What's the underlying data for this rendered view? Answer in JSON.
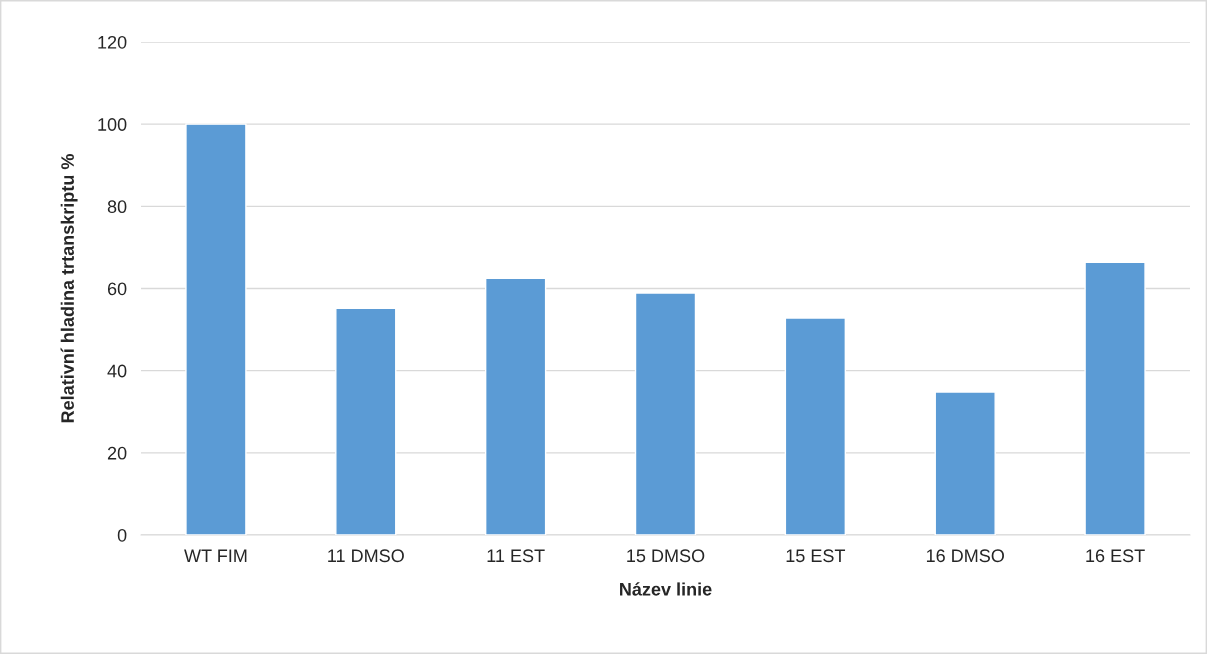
{
  "chart_data": {
    "type": "bar",
    "xlabel": "Název linie",
    "ylabel": "Relativní hladina trtanskriptu %",
    "categories": [
      "WT FIM",
      "11 DMSO",
      "11 EST",
      "15 DMSO",
      "15 EST",
      "16 DMSO",
      "16 EST"
    ],
    "values": [
      100,
      55.2,
      62.5,
      58.9,
      52.8,
      34.8,
      66.4
    ],
    "color": "#5b9bd5",
    "ylim": [
      0,
      120
    ],
    "yticks": [
      0,
      20,
      40,
      60,
      80,
      100,
      120
    ],
    "grid": "y",
    "legend": false
  }
}
